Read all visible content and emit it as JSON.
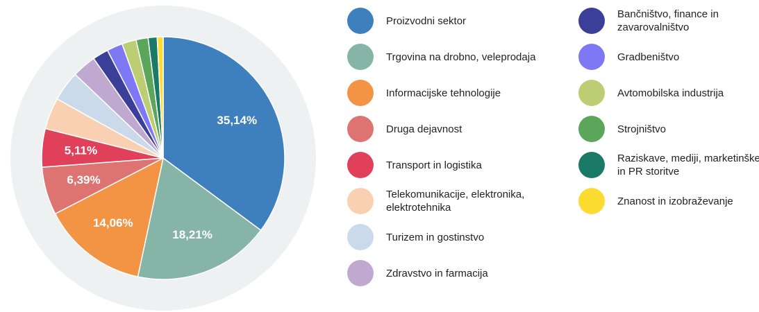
{
  "chart_data": {
    "type": "pie",
    "categories": [
      "Proizvodni sektor",
      "Trgovina na drobno, veleprodaja",
      "Informacijske tehnologije",
      "Druga dejavnost",
      "Transport in logistika",
      "Telekomunikacije, elektronika, elektrotehnika",
      "Turizem in gostinstvo",
      "Zdravstvo in farmacija",
      "Bančništvo, finance in zavarovalništvo",
      "Gradbeništvo",
      "Avtomobilska industrija",
      "Strojništvo",
      "Raziskave, mediji, marketinške in PR storitve",
      "Znanost in izobraževanje"
    ],
    "values": [
      35.14,
      18.21,
      14.06,
      6.39,
      5.11,
      4.2,
      4.0,
      3.2,
      2.1,
      2.1,
      1.9,
      1.6,
      1.2,
      0.79
    ],
    "value_labels": [
      "35,14%",
      "18,21%",
      "14,06%",
      "6,39%",
      "5,11%",
      null,
      null,
      null,
      null,
      null,
      null,
      null,
      null,
      null
    ],
    "colors": [
      "#3d80bd",
      "#86b5a8",
      "#f39444",
      "#de7472",
      "#e0405a",
      "#f9d1b2",
      "#cadaea",
      "#bfa9d0",
      "#3c3f97",
      "#7e78f5",
      "#bccd74",
      "#5ba65a",
      "#1a7a67",
      "#fddc32"
    ]
  }
}
